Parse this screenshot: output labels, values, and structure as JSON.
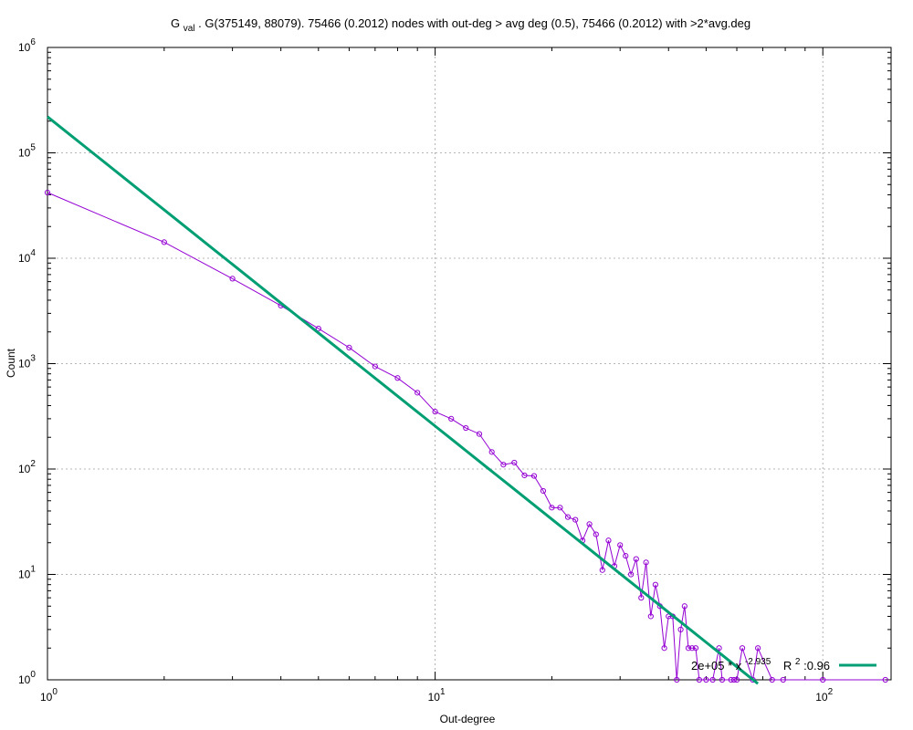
{
  "chart_data": {
    "type": "scatter",
    "title": {
      "prefix": "G",
      "subscript": "val",
      "rest": ". G(375149, 88079). 75466 (0.2012) nodes with out-deg > avg deg (0.5), 75466 (0.2012) with >2*avg.deg"
    },
    "xlabel": "Out-degree",
    "ylabel": "Count",
    "x_scale": "log",
    "y_scale": "log",
    "xlim": [
      1,
      150
    ],
    "ylim": [
      1,
      1000000
    ],
    "grid": true,
    "x_ticks": [
      {
        "base": "10",
        "exp": "0",
        "value": 1
      },
      {
        "base": "10",
        "exp": "1",
        "value": 10
      },
      {
        "base": "10",
        "exp": "2",
        "value": 100
      }
    ],
    "y_ticks": [
      {
        "base": "10",
        "exp": "0",
        "value": 1
      },
      {
        "base": "10",
        "exp": "1",
        "value": 10
      },
      {
        "base": "10",
        "exp": "2",
        "value": 100
      },
      {
        "base": "10",
        "exp": "3",
        "value": 1000
      },
      {
        "base": "10",
        "exp": "4",
        "value": 10000
      },
      {
        "base": "10",
        "exp": "5",
        "value": 100000
      },
      {
        "base": "10",
        "exp": "6",
        "value": 1000000
      }
    ],
    "series": [
      {
        "color": "#9400d3",
        "style": "linespoints",
        "points": [
          [
            1,
            42000
          ],
          [
            2,
            14200
          ],
          [
            3,
            6400
          ],
          [
            4,
            3550
          ],
          [
            5,
            2150
          ],
          [
            6,
            1420
          ],
          [
            7,
            940
          ],
          [
            8,
            730
          ],
          [
            9,
            530
          ],
          [
            10,
            350
          ],
          [
            11,
            300
          ],
          [
            12,
            245
          ],
          [
            13,
            215
          ],
          [
            14,
            145
          ],
          [
            15,
            110
          ],
          [
            16,
            115
          ],
          [
            17,
            87
          ],
          [
            18,
            86
          ],
          [
            19,
            62
          ],
          [
            20,
            43
          ],
          [
            21,
            43
          ],
          [
            22,
            35
          ],
          [
            23,
            33
          ],
          [
            24,
            21
          ],
          [
            25,
            30
          ],
          [
            26,
            24
          ],
          [
            27,
            11
          ],
          [
            28,
            21
          ],
          [
            29,
            12
          ],
          [
            30,
            19
          ],
          [
            31,
            15
          ],
          [
            32,
            10
          ],
          [
            33,
            14
          ],
          [
            34,
            6
          ],
          [
            35,
            13
          ],
          [
            36,
            4
          ],
          [
            37,
            8
          ],
          [
            38,
            5
          ],
          [
            39,
            2
          ],
          [
            40,
            4
          ],
          [
            41,
            4
          ],
          [
            42,
            1
          ],
          [
            43,
            3
          ],
          [
            44,
            5
          ],
          [
            45,
            2
          ],
          [
            46,
            2
          ],
          [
            47,
            2
          ],
          [
            48,
            1
          ],
          [
            50,
            1
          ],
          [
            52,
            1
          ],
          [
            54,
            2
          ],
          [
            55,
            1
          ],
          [
            58,
            1
          ],
          [
            59,
            1
          ],
          [
            60,
            1
          ],
          [
            62,
            2
          ],
          [
            66,
            1
          ],
          [
            68,
            2
          ],
          [
            74,
            1
          ],
          [
            79,
            1
          ],
          [
            100,
            1
          ],
          [
            145,
            1
          ]
        ]
      },
      {
        "color": "#009e73",
        "style": "lines",
        "fit": {
          "a": 220000,
          "b": -2.935,
          "x_from": 1,
          "x_to": 68
        },
        "legend": {
          "prefix": "2e+05 * x",
          "exponent": "-2.935",
          "r2_label": "R",
          "r2_exponent": "2",
          "r2_value": ":0.96"
        }
      }
    ]
  }
}
